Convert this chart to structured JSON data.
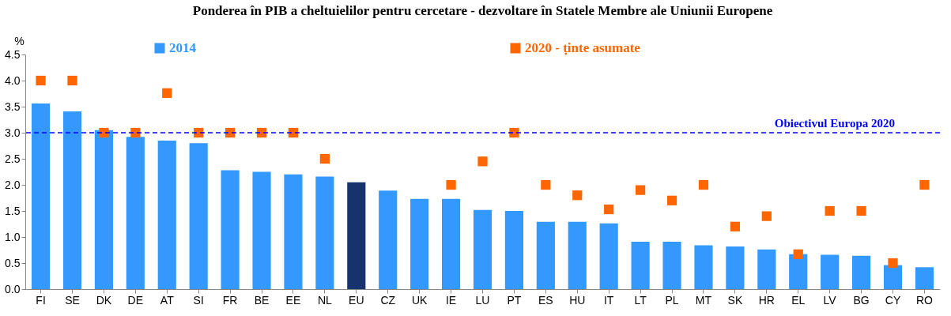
{
  "chart_data": {
    "type": "bar",
    "title": "Ponderea în PIB a cheltuielilor pentru cercetare - dezvoltare în Statele Membre ale Uniunii Europene",
    "ylabel": "%",
    "categories": [
      "FI",
      "SE",
      "DK",
      "DE",
      "AT",
      "SI",
      "FR",
      "BE",
      "EE",
      "NL",
      "EU",
      "CZ",
      "UK",
      "IE",
      "LU",
      "PT",
      "ES",
      "HU",
      "IT",
      "LT",
      "PL",
      "MT",
      "SK",
      "HR",
      "EL",
      "LV",
      "BG",
      "CY",
      "RO"
    ],
    "series": [
      {
        "name": "2014",
        "type": "bar",
        "color": "#3399ff",
        "colors": [
          "#3399ff",
          "#3399ff",
          "#3399ff",
          "#3399ff",
          "#3399ff",
          "#3399ff",
          "#3399ff",
          "#3399ff",
          "#3399ff",
          "#3399ff",
          "#17336e",
          "#3399ff",
          "#3399ff",
          "#3399ff",
          "#3399ff",
          "#3399ff",
          "#3399ff",
          "#3399ff",
          "#3399ff",
          "#3399ff",
          "#3399ff",
          "#3399ff",
          "#3399ff",
          "#3399ff",
          "#3399ff",
          "#3399ff",
          "#3399ff",
          "#3399ff",
          "#3399ff"
        ],
        "values": [
          3.56,
          3.41,
          3.05,
          2.92,
          2.85,
          2.8,
          2.28,
          2.25,
          2.2,
          2.16,
          2.05,
          1.89,
          1.73,
          1.73,
          1.52,
          1.5,
          1.29,
          1.29,
          1.26,
          0.91,
          0.91,
          0.84,
          0.82,
          0.76,
          0.67,
          0.66,
          0.64,
          0.46,
          0.42
        ]
      },
      {
        "name": "2020 - ținte asumate",
        "type": "scatter",
        "marker": "square",
        "color": "#ff6600",
        "values": [
          4.0,
          4.0,
          3.0,
          3.0,
          3.76,
          3.0,
          3.0,
          3.0,
          3.0,
          2.5,
          null,
          null,
          null,
          2.0,
          2.45,
          3.0,
          2.0,
          1.8,
          1.53,
          1.9,
          1.7,
          2.0,
          1.2,
          1.4,
          0.67,
          1.5,
          1.5,
          0.5,
          2.0
        ]
      }
    ],
    "ylim": [
      0,
      4.5
    ],
    "yticks": [
      {
        "value": 0,
        "label": "0.0"
      },
      {
        "value": 0.5,
        "label": "0.5"
      },
      {
        "value": 1,
        "label": "1.0"
      },
      {
        "value": 1.5,
        "label": "1.5"
      },
      {
        "value": 2,
        "label": "2.0"
      },
      {
        "value": 2.5,
        "label": "2.5"
      },
      {
        "value": 3,
        "label": "3.0"
      },
      {
        "value": 3.5,
        "label": "3.5"
      },
      {
        "value": 4,
        "label": "4.0"
      },
      {
        "value": 4.5,
        "label": "4.5"
      }
    ],
    "ref_lines": [
      {
        "axis": "y",
        "value": 3.0,
        "label": "Obiectivul Europa 2020",
        "color": "#0000ff",
        "line_style": "dashed"
      }
    ],
    "legend": "top",
    "grid": false
  }
}
